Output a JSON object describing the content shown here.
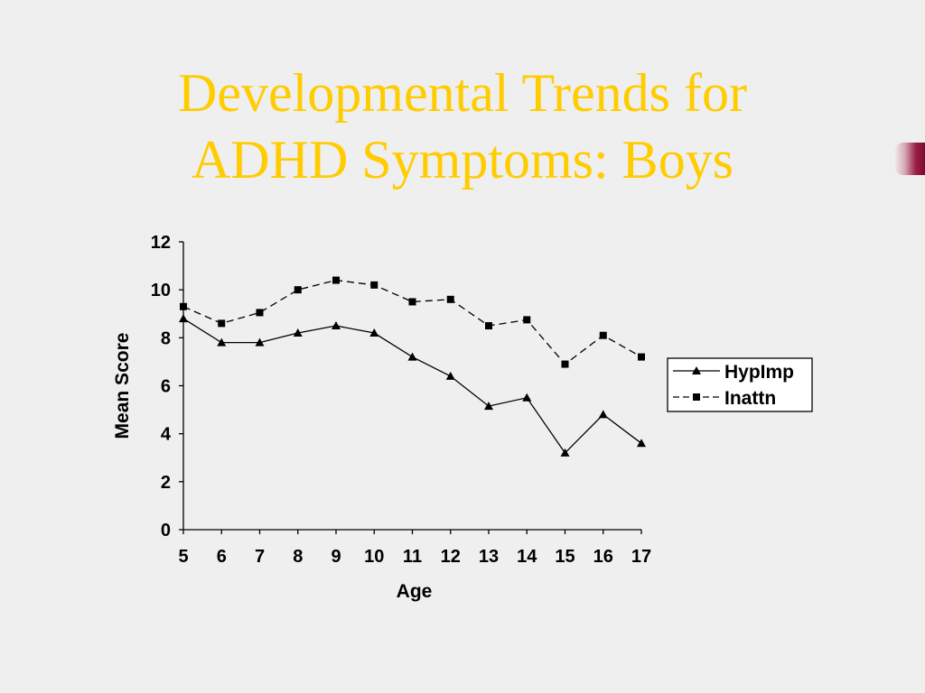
{
  "slide": {
    "title_line1": "Developmental Trends for",
    "title_line2": "ADHD Symptoms: Boys"
  },
  "chart_data": {
    "type": "line",
    "xlabel": "Age",
    "ylabel": "Mean Score",
    "x": [
      5,
      6,
      7,
      8,
      9,
      10,
      11,
      12,
      13,
      14,
      15,
      16,
      17
    ],
    "ylim": [
      0,
      12
    ],
    "yticks": [
      0,
      2,
      4,
      6,
      8,
      10,
      12
    ],
    "grid": false,
    "legend": "right",
    "series": [
      {
        "name": "HypImp",
        "marker": "triangle",
        "line_style": "solid",
        "values": [
          8.8,
          7.8,
          7.8,
          8.2,
          8.5,
          8.2,
          7.2,
          6.4,
          5.15,
          5.5,
          3.2,
          4.8,
          3.6
        ]
      },
      {
        "name": "Inattn",
        "marker": "square",
        "line_style": "dashed",
        "values": [
          9.3,
          8.6,
          9.05,
          10.0,
          10.4,
          10.2,
          9.5,
          9.6,
          8.5,
          8.75,
          6.9,
          8.1,
          7.2
        ]
      }
    ]
  }
}
